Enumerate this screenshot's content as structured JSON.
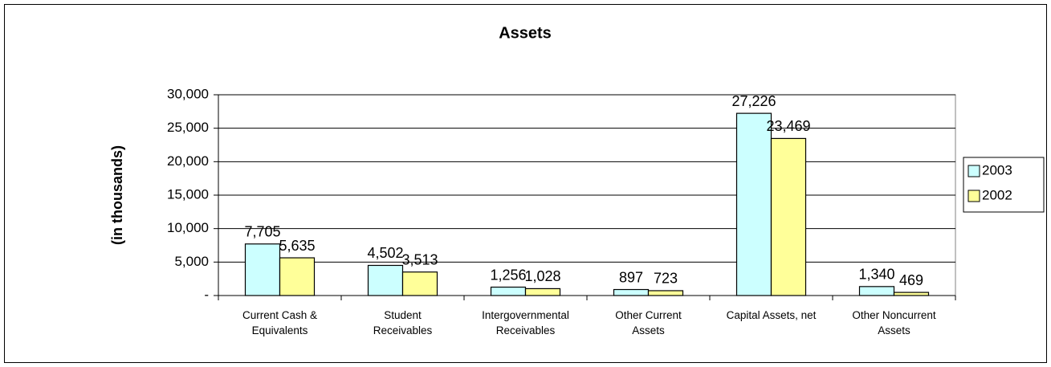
{
  "chart_data": {
    "type": "bar",
    "title": "Assets",
    "y_label": "(in thousands)",
    "categories": [
      "Current Cash &\nEquivalents",
      "Student\nReceivables",
      "Intergovernmental\nReceivables",
      "Other Current\nAssets",
      "Capital Assets, net",
      "Other Noncurrent\nAssets"
    ],
    "series": [
      {
        "name": "2003",
        "color": "#ccffff",
        "values": [
          7705,
          4502,
          1256,
          897,
          27226,
          1340
        ],
        "value_labels": [
          "7,705",
          "4,502",
          "1,256",
          "897",
          "27,226",
          "1,340"
        ]
      },
      {
        "name": "2002",
        "color": "#ffff99",
        "values": [
          5635,
          3513,
          1028,
          723,
          23469,
          469
        ],
        "value_labels": [
          "5,635",
          "3,513",
          "1,028",
          "723",
          "23,469",
          "469"
        ]
      }
    ],
    "ylim": [
      0,
      30000
    ],
    "yticks": [
      {
        "value": 0,
        "label": "-"
      },
      {
        "value": 5000,
        "label": "5,000"
      },
      {
        "value": 10000,
        "label": "10,000"
      },
      {
        "value": 15000,
        "label": "15,000"
      },
      {
        "value": 20000,
        "label": "20,000"
      },
      {
        "value": 25000,
        "label": "25,000"
      },
      {
        "value": 30000,
        "label": "30,000"
      }
    ],
    "grid": true,
    "legend": "right"
  }
}
